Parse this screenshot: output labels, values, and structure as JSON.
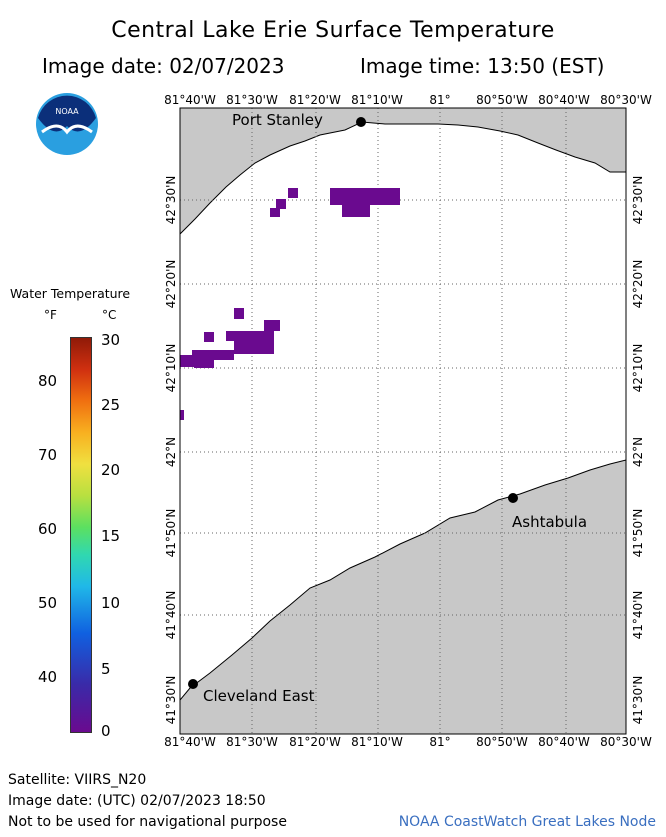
{
  "header": {
    "title": "Central Lake Erie Surface Temperature",
    "image_date": "Image date: 02/07/2023",
    "image_time": "Image time: 13:50 (EST)"
  },
  "logo": {
    "text": "NOAA"
  },
  "map": {
    "lon_labels": [
      "81°40'W",
      "81°30'W",
      "81°20'W",
      "81°10'W",
      "81°",
      "80°50'W",
      "80°40'W",
      "80°30'W"
    ],
    "lat_labels": [
      "42°30'N",
      "42°20'N",
      "42°10'N",
      "42°N",
      "41°50'N",
      "41°40'N",
      "41°30'N"
    ],
    "cities": [
      {
        "name": "Port Stanley"
      },
      {
        "name": "Ashtabula"
      },
      {
        "name": "Cleveland East"
      }
    ],
    "land_color": "#c8c8c8",
    "water_color": "#ffffff",
    "pixel_color": "#6a0a8f"
  },
  "legend": {
    "title": "Water Temperature",
    "unit_f": "°F",
    "unit_c": "°C",
    "f_labels": [
      "80",
      "70",
      "60",
      "50",
      "40"
    ],
    "c_labels": [
      "30",
      "25",
      "20",
      "15",
      "10",
      "5",
      "0"
    ]
  },
  "footer": {
    "satellite": "Satellite: VIIRS_N20",
    "utc": "Image date: (UTC) 02/07/2023  18:50",
    "disclaimer": "Not to be used for navigational purpose",
    "credit": "NOAA CoastWatch Great Lakes Node"
  }
}
